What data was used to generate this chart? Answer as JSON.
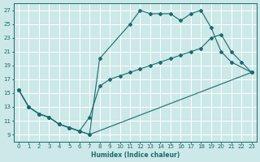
{
  "xlabel": "Humidex (Indice chaleur)",
  "background_color": "#cce8e8",
  "grid_color": "#aaaaaa",
  "line_color": "#1a6b6b",
  "xlim": [
    -0.5,
    23.5
  ],
  "ylim": [
    8.0,
    28.0
  ],
  "xticks": [
    0,
    1,
    2,
    3,
    4,
    5,
    6,
    7,
    8,
    9,
    10,
    11,
    12,
    13,
    14,
    15,
    16,
    17,
    18,
    19,
    20,
    21,
    22,
    23
  ],
  "yticks": [
    9,
    11,
    13,
    15,
    17,
    19,
    21,
    23,
    25,
    27
  ],
  "line1_x": [
    0,
    1,
    2,
    3,
    4,
    5,
    6,
    7,
    8,
    11,
    12,
    13,
    14,
    15,
    16,
    17,
    18,
    19,
    20,
    21,
    23
  ],
  "line1_y": [
    15.5,
    13.0,
    12.0,
    11.5,
    10.5,
    10.0,
    9.5,
    9.0,
    20.0,
    25.0,
    27.0,
    26.5,
    26.5,
    26.5,
    25.5,
    26.5,
    27.0,
    24.5,
    21.0,
    19.5,
    18.0
  ],
  "line2_x": [
    0,
    1,
    2,
    3,
    4,
    5,
    6,
    7,
    23
  ],
  "line2_y": [
    15.5,
    13.0,
    12.0,
    11.5,
    10.5,
    10.0,
    9.5,
    9.0,
    18.0
  ],
  "line3_x": [
    0,
    1,
    2,
    3,
    4,
    5,
    6,
    7,
    8,
    9,
    10,
    11,
    12,
    13,
    14,
    15,
    16,
    17,
    18,
    19,
    20,
    21,
    22,
    23
  ],
  "line3_y": [
    15.5,
    13.0,
    12.0,
    11.5,
    10.5,
    10.0,
    9.5,
    11.5,
    16.0,
    17.0,
    17.5,
    18.0,
    18.5,
    19.0,
    19.5,
    20.0,
    20.5,
    21.0,
    21.5,
    23.0,
    23.5,
    21.0,
    19.5,
    18.0
  ]
}
